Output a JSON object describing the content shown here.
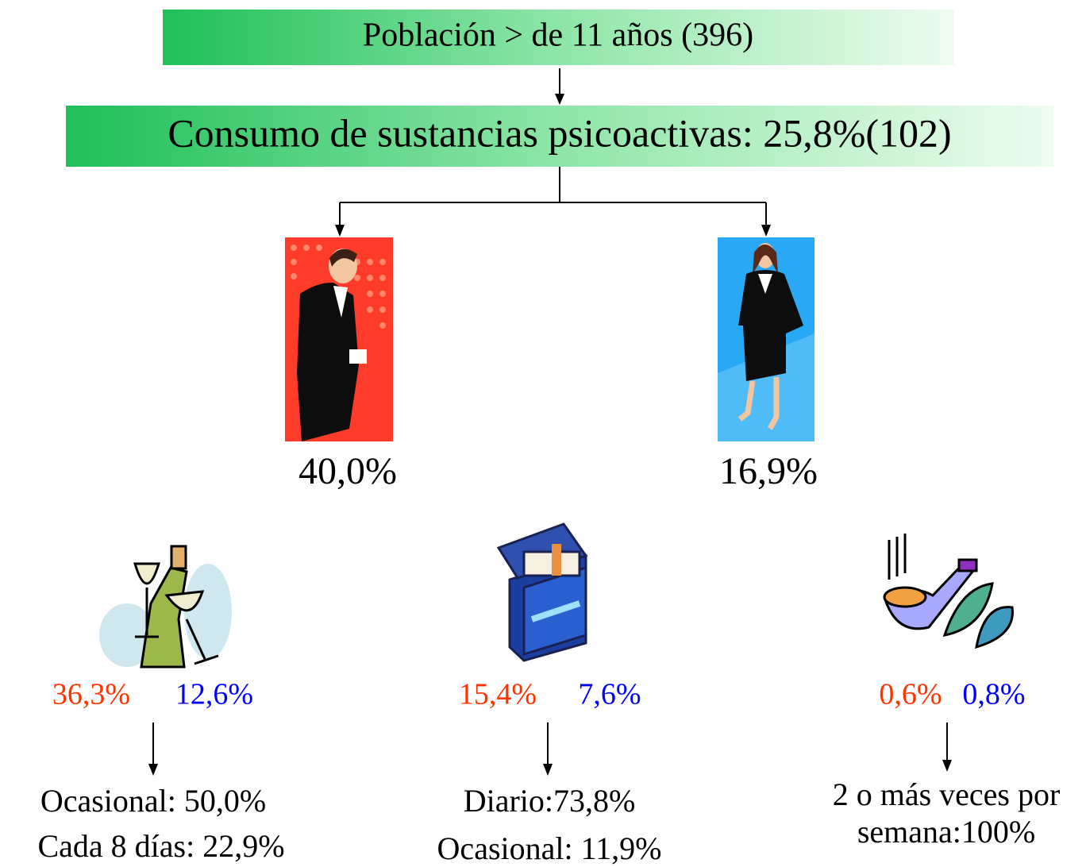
{
  "header": {
    "title": "Población > de 11 años (396)",
    "subtitle": "Consumo de sustancias psicoactivas:  25,8%(102)"
  },
  "groups": [
    {
      "label": "40,0%"
    },
    {
      "label": "16,9%"
    }
  ],
  "substances": [
    {
      "male": "36,3%",
      "female": "12,6%",
      "details": [
        "Ocasional: 50,0%",
        "Cada 8 días: 22,9%"
      ]
    },
    {
      "male": "15,4%",
      "female": "7,6%",
      "details": [
        "Diario:73,8%",
        "Ocasional: 11,9%"
      ]
    },
    {
      "male": "0,6%",
      "female": "0,8%",
      "details": [
        "2 o más veces por",
        "semana:100%"
      ]
    }
  ]
}
